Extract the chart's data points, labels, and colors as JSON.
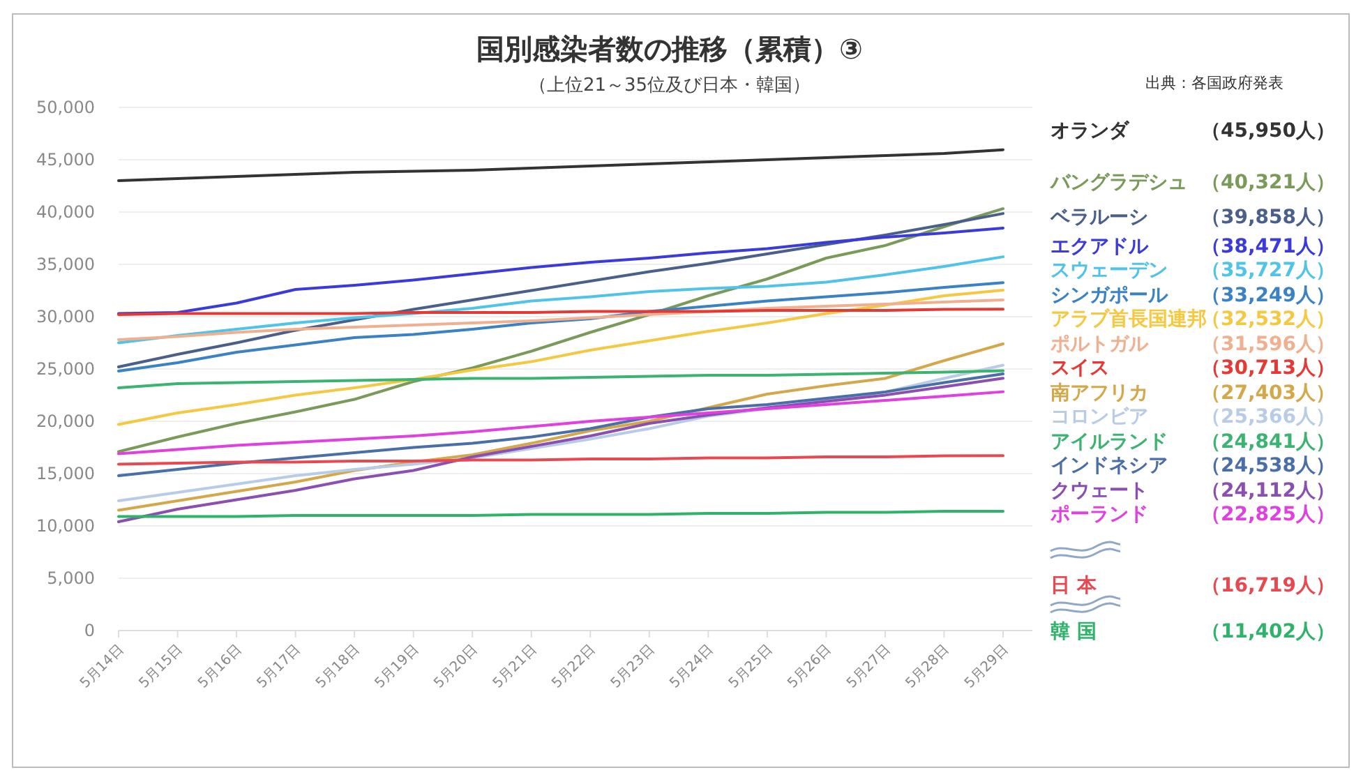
{
  "chart_data": {
    "type": "line",
    "title": "国別感染者数の推移（累積）③",
    "subtitle": "（上位21～35位及び日本・韓国）",
    "annotations": [
      "出典：各国政府発表",
      "（45,950人）",
      "（40,321人）",
      "（39,858人）",
      "（38,471人）",
      "（35,727人）",
      "（33,249人）",
      "（32,532人）",
      "（31,596人）",
      "（30,713人）",
      "（27,403人）",
      "（25,366人）",
      "（24,841人）",
      "（24,538人）",
      "（24,112人）",
      "（22,825人）",
      "（16,719人）",
      "（11,402人）"
    ],
    "categories": [
      "5月14日",
      "5月15日",
      "5月16日",
      "5月17日",
      "5月18日",
      "5月19日",
      "5月20日",
      "5月21日",
      "5月22日",
      "5月23日",
      "5月24日",
      "5月25日",
      "5月26日",
      "5月27日",
      "5月28日",
      "5月29日"
    ],
    "ylim": [
      0,
      50000
    ],
    "yticks": [
      {
        "value": 0,
        "label": "0"
      },
      {
        "value": 5000,
        "label": "5,000"
      },
      {
        "value": 10000,
        "label": "10,000"
      },
      {
        "value": 15000,
        "label": "15,000"
      },
      {
        "value": 20000,
        "label": "20,000"
      },
      {
        "value": 25000,
        "label": "25,000"
      },
      {
        "value": 30000,
        "label": "30,000"
      },
      {
        "value": 35000,
        "label": "35,000"
      },
      {
        "value": 40000,
        "label": "40,000"
      },
      {
        "value": 45000,
        "label": "45,000"
      },
      {
        "value": 50000,
        "label": "50,000"
      }
    ],
    "grid": "y",
    "legend": "right",
    "marker": "none",
    "line_style": "solid",
    "series": [
      {
        "name": "オランダ",
        "color": "#333333",
        "values": [
          43000,
          43200,
          43400,
          43600,
          43800,
          43900,
          44000,
          44200,
          44400,
          44600,
          44800,
          45000,
          45200,
          45400,
          45600,
          45950
        ]
      },
      {
        "name": "バングラデシュ",
        "color": "#7a9a5a",
        "values": [
          17100,
          18500,
          19800,
          20900,
          22100,
          23800,
          25100,
          26700,
          28500,
          30200,
          32000,
          33600,
          35600,
          36800,
          38600,
          40321
        ]
      },
      {
        "name": "ベラルーシ",
        "color": "#4a5f8a",
        "values": [
          25200,
          26400,
          27500,
          28700,
          29700,
          30700,
          31600,
          32500,
          33400,
          34300,
          35100,
          36000,
          36900,
          37800,
          38800,
          39858
        ]
      },
      {
        "name": "エクアドル",
        "color": "#3b3bdb",
        "values": [
          30300,
          30400,
          31300,
          32600,
          33000,
          33500,
          34100,
          34700,
          35200,
          35600,
          36100,
          36500,
          37100,
          37600,
          38000,
          38471
        ]
      },
      {
        "name": "スウェーデン",
        "color": "#4fc3e8",
        "values": [
          27500,
          28200,
          28800,
          29400,
          29900,
          30300,
          30800,
          31500,
          31900,
          32400,
          32700,
          32900,
          33300,
          34000,
          34800,
          35727
        ]
      },
      {
        "name": "シンガポール",
        "color": "#3a82c4",
        "values": [
          24800,
          25600,
          26600,
          27300,
          28000,
          28300,
          28800,
          29400,
          29800,
          30500,
          31000,
          31500,
          31900,
          32300,
          32800,
          33249
        ]
      },
      {
        "name": "アラブ首長国連邦",
        "color": "#f5c842",
        "values": [
          19700,
          20800,
          21600,
          22500,
          23200,
          24000,
          24900,
          25700,
          26800,
          27700,
          28600,
          29400,
          30300,
          31100,
          32000,
          32532
        ]
      },
      {
        "name": "ポルトガル",
        "color": "#f0b090",
        "values": [
          27800,
          28100,
          28500,
          28800,
          29000,
          29200,
          29400,
          29600,
          29900,
          30200,
          30500,
          30800,
          31000,
          31200,
          31400,
          31596
        ]
      },
      {
        "name": "スイス",
        "color": "#e53935",
        "values": [
          30200,
          30300,
          30300,
          30300,
          30300,
          30400,
          30400,
          30400,
          30500,
          30500,
          30500,
          30600,
          30600,
          30600,
          30700,
          30713
        ]
      },
      {
        "name": "南アフリカ",
        "color": "#d4a84a",
        "values": [
          11500,
          12400,
          13300,
          14200,
          15300,
          16100,
          16800,
          17900,
          19100,
          20000,
          21300,
          22600,
          23400,
          24100,
          25800,
          27403
        ]
      },
      {
        "name": "コロンビア",
        "color": "#b8cce8",
        "values": [
          12400,
          13200,
          14000,
          14800,
          15400,
          15900,
          16500,
          17400,
          18300,
          19300,
          20500,
          21200,
          22000,
          22800,
          24100,
          25366
        ]
      },
      {
        "name": "アイルランド",
        "color": "#3cb371",
        "values": [
          23200,
          23600,
          23700,
          23800,
          23900,
          24000,
          24100,
          24100,
          24200,
          24300,
          24400,
          24400,
          24500,
          24600,
          24700,
          24841
        ]
      },
      {
        "name": "インドネシア",
        "color": "#4a6fa8",
        "values": [
          14800,
          15400,
          16000,
          16500,
          17000,
          17500,
          17900,
          18500,
          19300,
          20400,
          21200,
          21600,
          22200,
          22800,
          23700,
          24538
        ]
      },
      {
        "name": "クウェート",
        "color": "#8a4fb0",
        "values": [
          10400,
          11600,
          12500,
          13400,
          14500,
          15300,
          16600,
          17600,
          18600,
          19800,
          20600,
          21300,
          21900,
          22500,
          23300,
          24112
        ]
      },
      {
        "name": "ポーランド",
        "color": "#e040e0",
        "values": [
          16900,
          17300,
          17700,
          18000,
          18300,
          18600,
          19000,
          19500,
          20000,
          20400,
          20800,
          21200,
          21600,
          22000,
          22400,
          22825
        ]
      },
      {
        "name": "日 本",
        "color": "#e84850",
        "values": [
          15900,
          16000,
          16100,
          16100,
          16200,
          16200,
          16300,
          16300,
          16400,
          16400,
          16500,
          16500,
          16600,
          16600,
          16700,
          16719
        ]
      },
      {
        "name": "韓 国",
        "color": "#2fb36a",
        "values": [
          10900,
          10900,
          10900,
          11000,
          11000,
          11000,
          11000,
          11100,
          11100,
          11100,
          11200,
          11200,
          11300,
          11300,
          11400,
          11402
        ]
      }
    ]
  }
}
